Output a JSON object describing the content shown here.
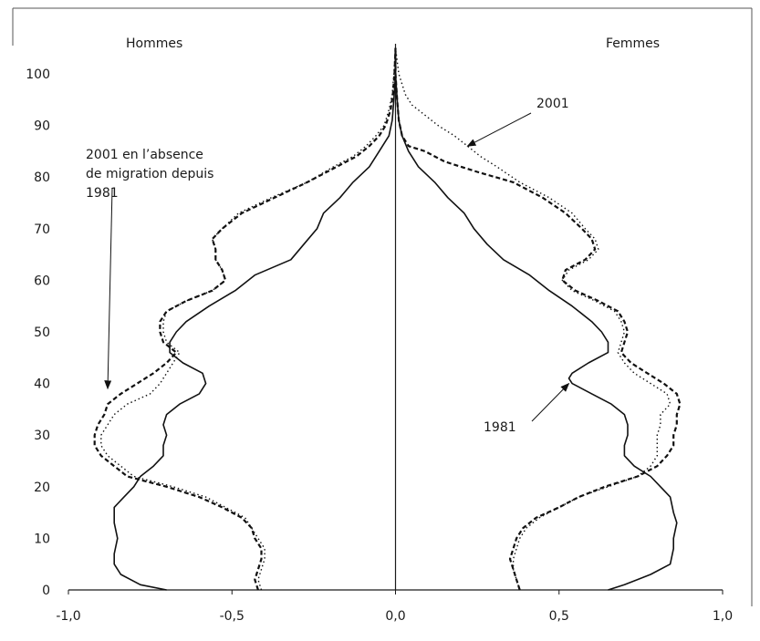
{
  "chart_data": {
    "type": "line",
    "title": "",
    "xlabel": "",
    "ylabel": "",
    "xlim": [
      -1.0,
      1.0
    ],
    "ylim": [
      0,
      100
    ],
    "x_ticks": [
      "-1,0",
      "-0,5",
      "0,0",
      "0,5",
      "1,0"
    ],
    "x_tick_values": [
      -1.0,
      -0.5,
      0.0,
      0.5,
      1.0
    ],
    "y_ticks": [
      "0",
      "10",
      "20",
      "30",
      "40",
      "50",
      "60",
      "70",
      "80",
      "90",
      "100"
    ],
    "y_tick_values": [
      0,
      10,
      20,
      30,
      40,
      50,
      60,
      70,
      80,
      90,
      100
    ],
    "grid": false,
    "side_labels": {
      "left": "Hommes",
      "right": "Femmes"
    },
    "annotations": [
      {
        "text_lines": [
          "2001"
        ],
        "points_to": [
          0.22,
          86
        ]
      },
      {
        "text_lines": [
          "2001 en l’absence",
          "de migration depuis",
          "1981"
        ],
        "points_to": [
          -0.88,
          39
        ]
      },
      {
        "text_lines": [
          "1981"
        ],
        "points_to": [
          0.53,
          40
        ]
      }
    ],
    "series": [
      {
        "id": "s1981",
        "style": "solid",
        "men": [
          [
            0,
            -0.7
          ],
          [
            1,
            -0.78
          ],
          [
            3,
            -0.84
          ],
          [
            5,
            -0.86
          ],
          [
            7,
            -0.86
          ],
          [
            10,
            -0.85
          ],
          [
            13,
            -0.86
          ],
          [
            16,
            -0.86
          ],
          [
            18,
            -0.83
          ],
          [
            20,
            -0.8
          ],
          [
            22,
            -0.78
          ],
          [
            24,
            -0.74
          ],
          [
            26,
            -0.71
          ],
          [
            28,
            -0.71
          ],
          [
            30,
            -0.7
          ],
          [
            32,
            -0.71
          ],
          [
            34,
            -0.7
          ],
          [
            36,
            -0.66
          ],
          [
            38,
            -0.6
          ],
          [
            40,
            -0.58
          ],
          [
            42,
            -0.59
          ],
          [
            44,
            -0.65
          ],
          [
            46,
            -0.69
          ],
          [
            48,
            -0.69
          ],
          [
            50,
            -0.67
          ],
          [
            52,
            -0.64
          ],
          [
            55,
            -0.57
          ],
          [
            58,
            -0.49
          ],
          [
            61,
            -0.43
          ],
          [
            64,
            -0.32
          ],
          [
            67,
            -0.28
          ],
          [
            70,
            -0.24
          ],
          [
            73,
            -0.22
          ],
          [
            76,
            -0.17
          ],
          [
            79,
            -0.13
          ],
          [
            82,
            -0.08
          ],
          [
            85,
            -0.05
          ],
          [
            88,
            -0.02
          ],
          [
            91,
            -0.01
          ],
          [
            95,
            -0.005
          ],
          [
            100,
            0.0
          ],
          [
            105,
            0.0
          ]
        ],
        "women": [
          [
            0,
            0.65
          ],
          [
            1,
            0.7
          ],
          [
            3,
            0.78
          ],
          [
            5,
            0.84
          ],
          [
            8,
            0.85
          ],
          [
            10,
            0.85
          ],
          [
            13,
            0.86
          ],
          [
            15,
            0.85
          ],
          [
            18,
            0.84
          ],
          [
            20,
            0.81
          ],
          [
            22,
            0.78
          ],
          [
            24,
            0.73
          ],
          [
            26,
            0.7
          ],
          [
            28,
            0.7
          ],
          [
            30,
            0.71
          ],
          [
            32,
            0.71
          ],
          [
            34,
            0.7
          ],
          [
            36,
            0.66
          ],
          [
            38,
            0.6
          ],
          [
            40,
            0.54
          ],
          [
            41,
            0.53
          ],
          [
            42,
            0.54
          ],
          [
            44,
            0.59
          ],
          [
            46,
            0.65
          ],
          [
            48,
            0.65
          ],
          [
            50,
            0.63
          ],
          [
            52,
            0.6
          ],
          [
            55,
            0.54
          ],
          [
            58,
            0.47
          ],
          [
            61,
            0.41
          ],
          [
            64,
            0.33
          ],
          [
            67,
            0.28
          ],
          [
            70,
            0.24
          ],
          [
            73,
            0.21
          ],
          [
            76,
            0.16
          ],
          [
            79,
            0.12
          ],
          [
            82,
            0.07
          ],
          [
            85,
            0.04
          ],
          [
            88,
            0.02
          ],
          [
            91,
            0.01
          ],
          [
            95,
            0.005
          ],
          [
            100,
            0.0
          ],
          [
            105,
            0.0
          ]
        ]
      },
      {
        "id": "s2001",
        "style": "dotted",
        "men": [
          [
            0,
            -0.41
          ],
          [
            2,
            -0.42
          ],
          [
            4,
            -0.41
          ],
          [
            6,
            -0.4
          ],
          [
            8,
            -0.4
          ],
          [
            10,
            -0.42
          ],
          [
            12,
            -0.44
          ],
          [
            14,
            -0.46
          ],
          [
            16,
            -0.52
          ],
          [
            18,
            -0.58
          ],
          [
            20,
            -0.68
          ],
          [
            22,
            -0.8
          ],
          [
            24,
            -0.84
          ],
          [
            26,
            -0.88
          ],
          [
            28,
            -0.9
          ],
          [
            30,
            -0.9
          ],
          [
            32,
            -0.88
          ],
          [
            34,
            -0.86
          ],
          [
            36,
            -0.82
          ],
          [
            38,
            -0.75
          ],
          [
            40,
            -0.72
          ],
          [
            42,
            -0.7
          ],
          [
            44,
            -0.68
          ],
          [
            46,
            -0.66
          ],
          [
            48,
            -0.7
          ],
          [
            50,
            -0.71
          ],
          [
            52,
            -0.71
          ],
          [
            54,
            -0.7
          ],
          [
            56,
            -0.64
          ],
          [
            58,
            -0.56
          ],
          [
            60,
            -0.52
          ],
          [
            62,
            -0.53
          ],
          [
            64,
            -0.55
          ],
          [
            66,
            -0.55
          ],
          [
            68,
            -0.56
          ],
          [
            70,
            -0.53
          ],
          [
            73,
            -0.48
          ],
          [
            76,
            -0.38
          ],
          [
            79,
            -0.27
          ],
          [
            82,
            -0.19
          ],
          [
            84,
            -0.13
          ],
          [
            86,
            -0.09
          ],
          [
            88,
            -0.06
          ],
          [
            90,
            -0.035
          ],
          [
            93,
            -0.02
          ],
          [
            96,
            -0.01
          ],
          [
            100,
            -0.005
          ],
          [
            105,
            0.0
          ]
        ],
        "women": [
          [
            0,
            0.38
          ],
          [
            2,
            0.37
          ],
          [
            4,
            0.36
          ],
          [
            6,
            0.36
          ],
          [
            8,
            0.37
          ],
          [
            10,
            0.38
          ],
          [
            12,
            0.4
          ],
          [
            14,
            0.44
          ],
          [
            16,
            0.5
          ],
          [
            18,
            0.56
          ],
          [
            20,
            0.65
          ],
          [
            22,
            0.74
          ],
          [
            24,
            0.78
          ],
          [
            26,
            0.8
          ],
          [
            28,
            0.8
          ],
          [
            30,
            0.8
          ],
          [
            32,
            0.81
          ],
          [
            34,
            0.81
          ],
          [
            36,
            0.84
          ],
          [
            38,
            0.83
          ],
          [
            40,
            0.78
          ],
          [
            42,
            0.73
          ],
          [
            44,
            0.7
          ],
          [
            46,
            0.68
          ],
          [
            48,
            0.69
          ],
          [
            50,
            0.7
          ],
          [
            52,
            0.69
          ],
          [
            54,
            0.67
          ],
          [
            56,
            0.61
          ],
          [
            58,
            0.54
          ],
          [
            60,
            0.51
          ],
          [
            62,
            0.53
          ],
          [
            64,
            0.59
          ],
          [
            66,
            0.62
          ],
          [
            68,
            0.61
          ],
          [
            70,
            0.58
          ],
          [
            73,
            0.54
          ],
          [
            76,
            0.47
          ],
          [
            79,
            0.38
          ],
          [
            82,
            0.31
          ],
          [
            84,
            0.26
          ],
          [
            86,
            0.22
          ],
          [
            88,
            0.18
          ],
          [
            90,
            0.13
          ],
          [
            92,
            0.09
          ],
          [
            94,
            0.05
          ],
          [
            96,
            0.03
          ],
          [
            100,
            0.01
          ],
          [
            105,
            0.0
          ]
        ]
      },
      {
        "id": "s2001nomig",
        "style": "dashed",
        "men": [
          [
            0,
            -0.42
          ],
          [
            2,
            -0.43
          ],
          [
            4,
            -0.42
          ],
          [
            6,
            -0.41
          ],
          [
            8,
            -0.41
          ],
          [
            10,
            -0.43
          ],
          [
            12,
            -0.44
          ],
          [
            14,
            -0.47
          ],
          [
            16,
            -0.53
          ],
          [
            18,
            -0.6
          ],
          [
            20,
            -0.7
          ],
          [
            22,
            -0.82
          ],
          [
            24,
            -0.86
          ],
          [
            26,
            -0.9
          ],
          [
            28,
            -0.92
          ],
          [
            30,
            -0.92
          ],
          [
            32,
            -0.91
          ],
          [
            34,
            -0.89
          ],
          [
            36,
            -0.88
          ],
          [
            38,
            -0.84
          ],
          [
            40,
            -0.79
          ],
          [
            42,
            -0.74
          ],
          [
            44,
            -0.7
          ],
          [
            46,
            -0.67
          ],
          [
            48,
            -0.71
          ],
          [
            50,
            -0.72
          ],
          [
            52,
            -0.72
          ],
          [
            54,
            -0.7
          ],
          [
            56,
            -0.64
          ],
          [
            58,
            -0.56
          ],
          [
            60,
            -0.52
          ],
          [
            62,
            -0.53
          ],
          [
            64,
            -0.55
          ],
          [
            66,
            -0.55
          ],
          [
            68,
            -0.56
          ],
          [
            70,
            -0.53
          ],
          [
            73,
            -0.47
          ],
          [
            76,
            -0.37
          ],
          [
            79,
            -0.27
          ],
          [
            82,
            -0.18
          ],
          [
            84,
            -0.12
          ],
          [
            86,
            -0.08
          ],
          [
            88,
            -0.05
          ],
          [
            90,
            -0.03
          ],
          [
            93,
            -0.015
          ],
          [
            96,
            -0.008
          ],
          [
            100,
            -0.003
          ],
          [
            105,
            0.0
          ]
        ],
        "women": [
          [
            0,
            0.38
          ],
          [
            2,
            0.37
          ],
          [
            4,
            0.36
          ],
          [
            6,
            0.35
          ],
          [
            8,
            0.36
          ],
          [
            10,
            0.37
          ],
          [
            12,
            0.39
          ],
          [
            14,
            0.43
          ],
          [
            16,
            0.5
          ],
          [
            18,
            0.56
          ],
          [
            20,
            0.64
          ],
          [
            22,
            0.74
          ],
          [
            24,
            0.8
          ],
          [
            26,
            0.83
          ],
          [
            28,
            0.85
          ],
          [
            30,
            0.85
          ],
          [
            32,
            0.86
          ],
          [
            34,
            0.86
          ],
          [
            36,
            0.87
          ],
          [
            38,
            0.86
          ],
          [
            40,
            0.82
          ],
          [
            42,
            0.77
          ],
          [
            44,
            0.72
          ],
          [
            46,
            0.69
          ],
          [
            48,
            0.7
          ],
          [
            50,
            0.71
          ],
          [
            52,
            0.7
          ],
          [
            54,
            0.68
          ],
          [
            56,
            0.62
          ],
          [
            58,
            0.55
          ],
          [
            60,
            0.51
          ],
          [
            62,
            0.52
          ],
          [
            64,
            0.58
          ],
          [
            66,
            0.61
          ],
          [
            68,
            0.6
          ],
          [
            70,
            0.57
          ],
          [
            73,
            0.52
          ],
          [
            76,
            0.45
          ],
          [
            79,
            0.36
          ],
          [
            81,
            0.25
          ],
          [
            83,
            0.15
          ],
          [
            85,
            0.09
          ],
          [
            86,
            0.04
          ],
          [
            88,
            0.02
          ],
          [
            91,
            0.01
          ],
          [
            95,
            0.005
          ],
          [
            100,
            0.0
          ],
          [
            105,
            0.0
          ]
        ]
      }
    ]
  }
}
